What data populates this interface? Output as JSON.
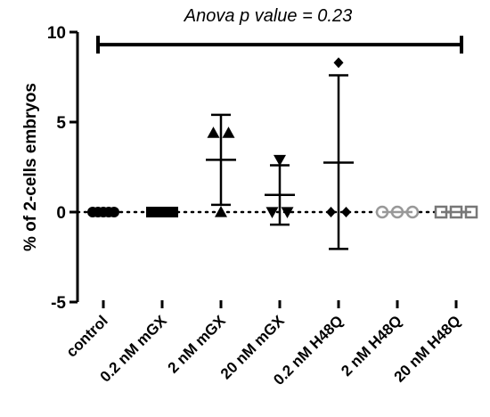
{
  "chart_data": {
    "type": "scatter",
    "title": "Anova p value = 0.23",
    "xlabel": "",
    "ylabel": "% of 2-cells embryos",
    "ylim": [
      -5,
      10
    ],
    "yticks": [
      -5,
      0,
      5,
      10
    ],
    "grid": false,
    "reference_line_y": 0,
    "categories": [
      "control",
      "0.2 nM mGX",
      "2 nM mGX",
      "20 nM mGX",
      "0.2 nM H48Q",
      "2 nM H48Q",
      "20 nM H48Q"
    ],
    "series": [
      {
        "category": "control",
        "marker": "circle",
        "color": "#000000",
        "points": [
          0,
          0,
          0,
          0,
          0
        ],
        "mean": 0,
        "sd_low": 0,
        "sd_high": 0
      },
      {
        "category": "0.2 nM mGX",
        "marker": "square",
        "color": "#000000",
        "points": [
          0,
          0,
          0,
          0,
          0
        ],
        "mean": 0,
        "sd_low": 0,
        "sd_high": 0
      },
      {
        "category": "2 nM mGX",
        "marker": "triangle-up",
        "color": "#000000",
        "points": [
          4.4,
          4.4,
          0
        ],
        "mean": 2.9,
        "sd_low": 0.4,
        "sd_high": 5.4
      },
      {
        "category": "20 nM mGX",
        "marker": "triangle-down",
        "color": "#000000",
        "points": [
          2.9,
          0,
          0
        ],
        "mean": 0.95,
        "sd_low": -0.7,
        "sd_high": 2.6
      },
      {
        "category": "0.2 nM H48Q",
        "marker": "diamond",
        "color": "#000000",
        "points": [
          8.3,
          0,
          0
        ],
        "mean": 2.75,
        "sd_low": -2.05,
        "sd_high": 7.6
      },
      {
        "category": "2 nM H48Q",
        "marker": "circle-open",
        "color": "#999999",
        "points": [
          0,
          0,
          0
        ],
        "mean": 0,
        "sd_low": 0,
        "sd_high": 0
      },
      {
        "category": "20 nM H48Q",
        "marker": "square-open",
        "color": "#777777",
        "points": [
          0,
          0,
          0
        ],
        "mean": 0,
        "sd_low": 0,
        "sd_high": 0
      }
    ],
    "comparison_bracket": {
      "from": "control",
      "to": "20 nM H48Q",
      "y": 9.3
    }
  }
}
